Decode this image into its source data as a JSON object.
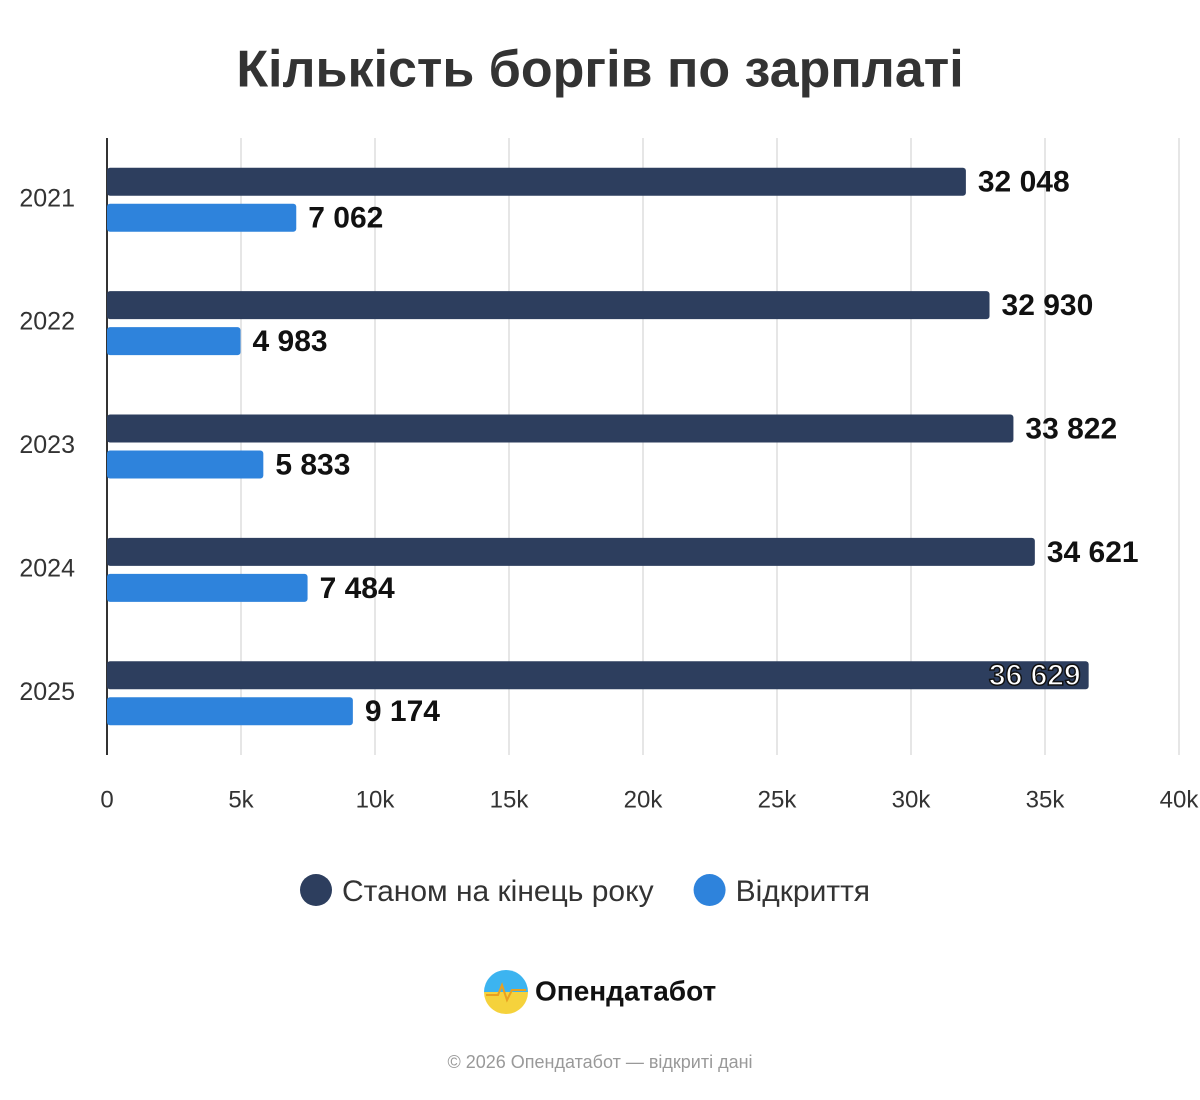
{
  "chart_data": {
    "type": "hbar",
    "title": "Кількість боргів по зарплаті",
    "categories": [
      "2021",
      "2022",
      "2023",
      "2024",
      "2025"
    ],
    "series": [
      {
        "name": "Станом на кінець року",
        "color": "#2d3e5e",
        "values": [
          32048,
          32930,
          33822,
          34621,
          36629
        ],
        "value_labels": [
          "32 048",
          "32 930",
          "33 822",
          "34 621",
          "36 629"
        ]
      },
      {
        "name": "Відкриття",
        "color": "#2e83dc",
        "values": [
          7062,
          4983,
          5833,
          7484,
          9174
        ],
        "value_labels": [
          "7 062",
          "4 983",
          "5 833",
          "7 484",
          "9 174"
        ]
      }
    ],
    "xlim": [
      0,
      40000
    ],
    "xticks": [
      0,
      {
        "value": 5000,
        "label": "5k"
      },
      {
        "value": 10000,
        "label": "10k"
      },
      {
        "value": 15000,
        "label": "15k"
      },
      {
        "value": 20000,
        "label": "20k"
      },
      {
        "value": 25000,
        "label": "25k"
      },
      {
        "value": 30000,
        "label": "30k"
      },
      {
        "value": 35000,
        "label": "35k"
      },
      {
        "value": 40000,
        "label": "40k"
      }
    ],
    "grid": true,
    "legend": "bottom"
  },
  "branding": {
    "logo": "Опендатабот",
    "footer": "© 2026 Опендатабот — відкриті дані"
  }
}
